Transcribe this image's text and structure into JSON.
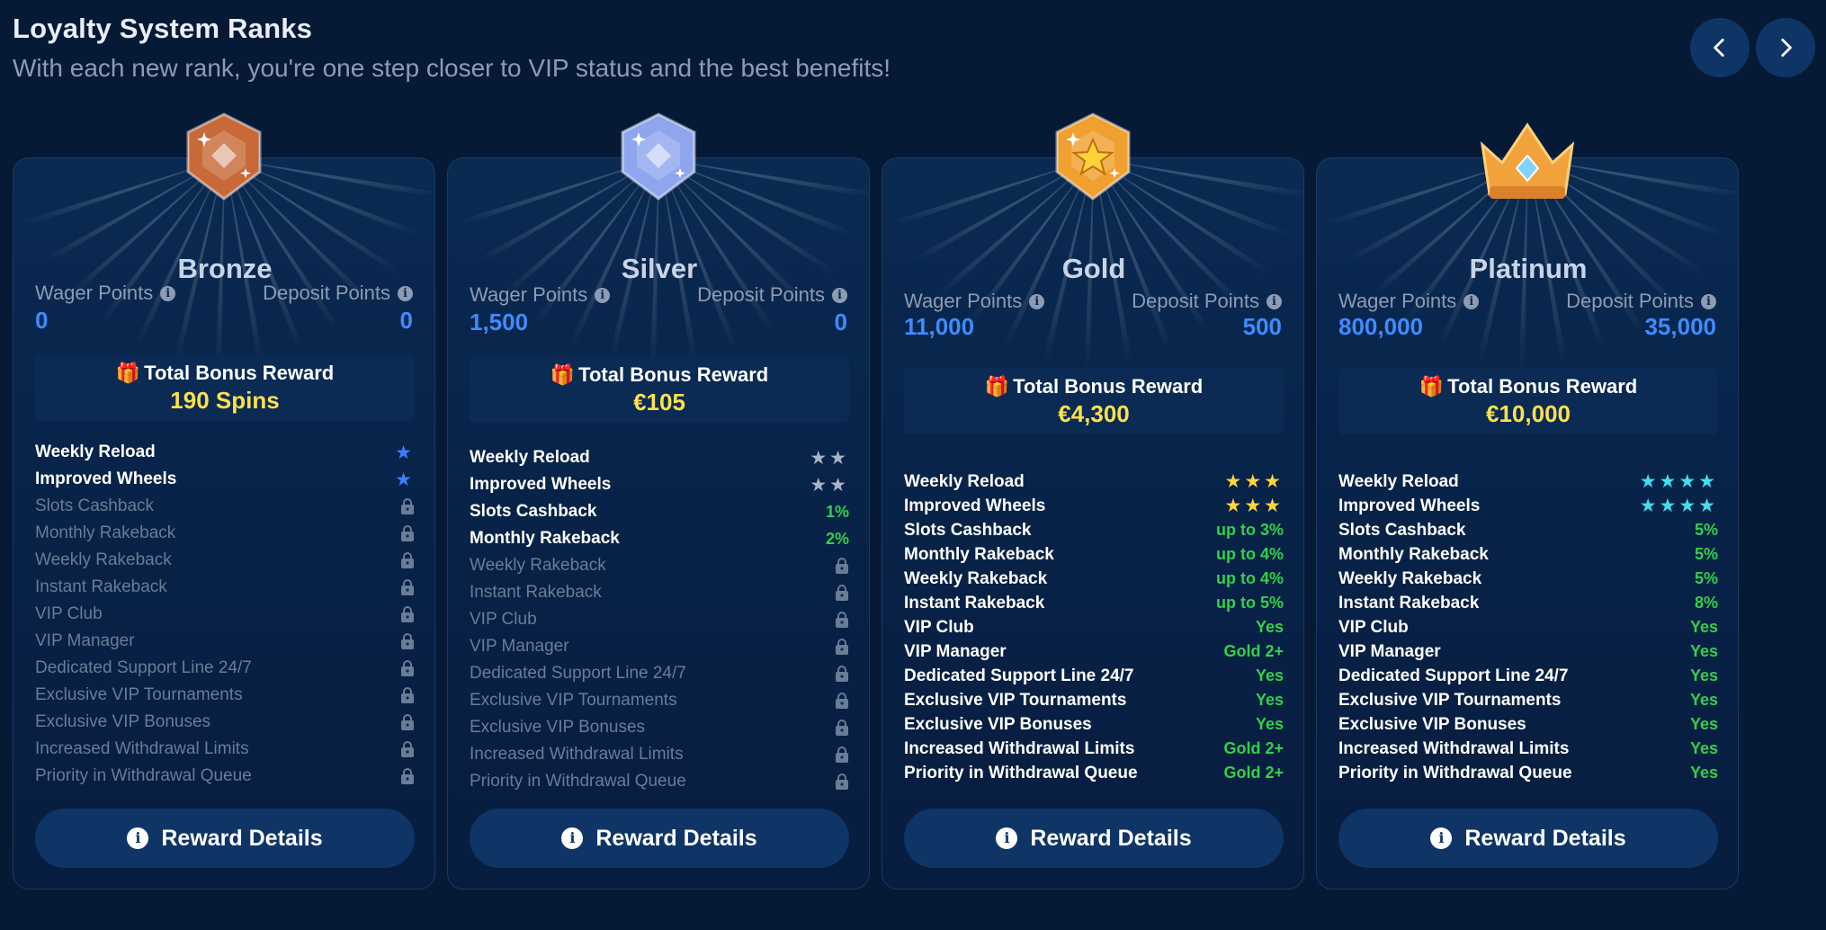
{
  "header": {
    "title": "Loyalty System Ranks",
    "subtitle": "With each new rank, you're one step closer to VIP status and the best benefits!"
  },
  "nav": {
    "prev_icon": "chevron-left-icon",
    "next_icon": "chevron-right-icon"
  },
  "common": {
    "wager_label": "Wager Points",
    "deposit_label": "Deposit Points",
    "bonus_title": "Total Bonus Reward",
    "reward_button": "Reward Details"
  },
  "ranks": [
    {
      "name": "Bronze",
      "badge_color": "#c8693a",
      "wager": "0",
      "deposit": "0",
      "bonus": "190 Spins",
      "benefits": [
        {
          "label": "Weekly Reload",
          "type": "stars",
          "value": "★",
          "style": "blue"
        },
        {
          "label": "Improved Wheels",
          "type": "stars",
          "value": "★",
          "style": "blue"
        },
        {
          "label": "Slots Cashback",
          "type": "locked"
        },
        {
          "label": "Monthly Rakeback",
          "type": "locked"
        },
        {
          "label": "Weekly Rakeback",
          "type": "locked"
        },
        {
          "label": "Instant Rakeback",
          "type": "locked"
        },
        {
          "label": "VIP Club",
          "type": "locked"
        },
        {
          "label": "VIP Manager",
          "type": "locked"
        },
        {
          "label": "Dedicated Support Line 24/7",
          "type": "locked"
        },
        {
          "label": "Exclusive VIP Tournaments",
          "type": "locked"
        },
        {
          "label": "Exclusive VIP Bonuses",
          "type": "locked"
        },
        {
          "label": "Increased Withdrawal Limits",
          "type": "locked"
        },
        {
          "label": "Priority in Withdrawal Queue",
          "type": "locked"
        }
      ]
    },
    {
      "name": "Silver",
      "badge_color": "#8fa6ee",
      "wager": "1,500",
      "deposit": "0",
      "bonus": "€105",
      "benefits": [
        {
          "label": "Weekly Reload",
          "type": "stars",
          "value": "★★",
          "style": "grey"
        },
        {
          "label": "Improved Wheels",
          "type": "stars",
          "value": "★★",
          "style": "grey"
        },
        {
          "label": "Slots Cashback",
          "type": "value",
          "value": "1%"
        },
        {
          "label": "Monthly Rakeback",
          "type": "value",
          "value": "2%"
        },
        {
          "label": "Weekly Rakeback",
          "type": "locked"
        },
        {
          "label": "Instant Rakeback",
          "type": "locked"
        },
        {
          "label": "VIP Club",
          "type": "locked"
        },
        {
          "label": "VIP Manager",
          "type": "locked"
        },
        {
          "label": "Dedicated Support Line 24/7",
          "type": "locked"
        },
        {
          "label": "Exclusive VIP Tournaments",
          "type": "locked"
        },
        {
          "label": "Exclusive VIP Bonuses",
          "type": "locked"
        },
        {
          "label": "Increased Withdrawal Limits",
          "type": "locked"
        },
        {
          "label": "Priority in Withdrawal Queue",
          "type": "locked"
        }
      ]
    },
    {
      "name": "Gold",
      "badge_color": "#f0a030",
      "wager": "11,000",
      "deposit": "500",
      "bonus": "€4,300",
      "benefits": [
        {
          "label": "Weekly Reload",
          "type": "stars",
          "value": "★★★",
          "style": "yellow"
        },
        {
          "label": "Improved Wheels",
          "type": "stars",
          "value": "★★★",
          "style": "yellow"
        },
        {
          "label": "Slots Cashback",
          "type": "value",
          "value": "up to 3%"
        },
        {
          "label": "Monthly Rakeback",
          "type": "value",
          "value": "up to 4%"
        },
        {
          "label": "Weekly Rakeback",
          "type": "value",
          "value": "up to 4%"
        },
        {
          "label": "Instant Rakeback",
          "type": "value",
          "value": "up to 5%"
        },
        {
          "label": "VIP Club",
          "type": "value",
          "value": "Yes"
        },
        {
          "label": "VIP Manager",
          "type": "value",
          "value": "Gold 2+"
        },
        {
          "label": "Dedicated Support Line 24/7",
          "type": "value",
          "value": "Yes"
        },
        {
          "label": "Exclusive VIP Tournaments",
          "type": "value",
          "value": "Yes"
        },
        {
          "label": "Exclusive VIP Bonuses",
          "type": "value",
          "value": "Yes"
        },
        {
          "label": "Increased Withdrawal Limits",
          "type": "value",
          "value": "Gold 2+"
        },
        {
          "label": "Priority in Withdrawal Queue",
          "type": "value",
          "value": "Gold 2+"
        }
      ]
    },
    {
      "name": "Platinum",
      "badge_color": "#f2a23a",
      "wager": "800,000",
      "deposit": "35,000",
      "bonus": "€10,000",
      "benefits": [
        {
          "label": "Weekly Reload",
          "type": "stars",
          "value": "★★★★",
          "style": "cyan"
        },
        {
          "label": "Improved Wheels",
          "type": "stars",
          "value": "★★★★",
          "style": "cyan"
        },
        {
          "label": "Slots Cashback",
          "type": "value",
          "value": "5%"
        },
        {
          "label": "Monthly Rakeback",
          "type": "value",
          "value": "5%"
        },
        {
          "label": "Weekly Rakeback",
          "type": "value",
          "value": "5%"
        },
        {
          "label": "Instant Rakeback",
          "type": "value",
          "value": "8%"
        },
        {
          "label": "VIP Club",
          "type": "value",
          "value": "Yes"
        },
        {
          "label": "VIP Manager",
          "type": "value",
          "value": "Yes"
        },
        {
          "label": "Dedicated Support Line 24/7",
          "type": "value",
          "value": "Yes"
        },
        {
          "label": "Exclusive VIP Tournaments",
          "type": "value",
          "value": "Yes"
        },
        {
          "label": "Exclusive VIP Bonuses",
          "type": "value",
          "value": "Yes"
        },
        {
          "label": "Increased Withdrawal Limits",
          "type": "value",
          "value": "Yes"
        },
        {
          "label": "Priority in Withdrawal Queue",
          "type": "value",
          "value": "Yes"
        }
      ]
    }
  ]
}
